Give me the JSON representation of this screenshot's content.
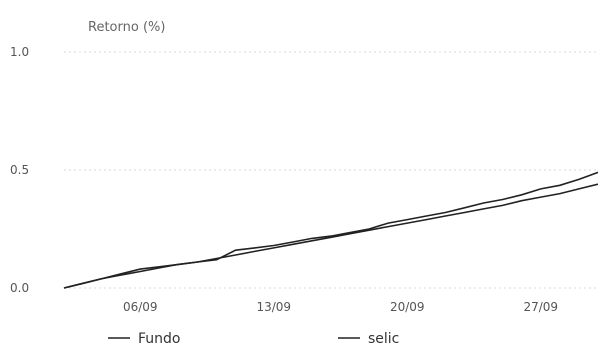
{
  "chart_data": {
    "type": "line",
    "ylabel": "Retorno (%)",
    "ylim": [
      0,
      1.0
    ],
    "yticks": [
      {
        "value": 0.0,
        "label": "0.0"
      },
      {
        "value": 0.5,
        "label": "0.5"
      },
      {
        "value": 1.0,
        "label": "1.0"
      }
    ],
    "xlim": [
      "2013-09-02",
      "2013-09-30"
    ],
    "xticks": [
      {
        "value": "2013-09-06",
        "label": "06/09"
      },
      {
        "value": "2013-09-13",
        "label": "13/09"
      },
      {
        "value": "2013-09-20",
        "label": "20/09"
      },
      {
        "value": "2013-09-27",
        "label": "27/09"
      }
    ],
    "grid": true,
    "legend_position": "bottom",
    "series": [
      {
        "name": "Fundo",
        "color": "#222222",
        "points": [
          [
            "2013-09-02",
            0.0
          ],
          [
            "2013-09-03",
            0.02
          ],
          [
            "2013-09-04",
            0.04
          ],
          [
            "2013-09-05",
            0.06
          ],
          [
            "2013-09-06",
            0.08
          ],
          [
            "2013-09-07",
            0.09
          ],
          [
            "2013-09-08",
            0.1
          ],
          [
            "2013-09-09",
            0.11
          ],
          [
            "2013-09-10",
            0.12
          ],
          [
            "2013-09-11",
            0.16
          ],
          [
            "2013-09-12",
            0.17
          ],
          [
            "2013-09-13",
            0.18
          ],
          [
            "2013-09-14",
            0.195
          ],
          [
            "2013-09-15",
            0.21
          ],
          [
            "2013-09-16",
            0.22
          ],
          [
            "2013-09-17",
            0.235
          ],
          [
            "2013-09-18",
            0.25
          ],
          [
            "2013-09-19",
            0.275
          ],
          [
            "2013-09-20",
            0.29
          ],
          [
            "2013-09-21",
            0.305
          ],
          [
            "2013-09-22",
            0.32
          ],
          [
            "2013-09-23",
            0.34
          ],
          [
            "2013-09-24",
            0.36
          ],
          [
            "2013-09-25",
            0.375
          ],
          [
            "2013-09-26",
            0.395
          ],
          [
            "2013-09-27",
            0.42
          ],
          [
            "2013-09-28",
            0.435
          ],
          [
            "2013-09-29",
            0.46
          ],
          [
            "2013-09-30",
            0.49
          ]
        ]
      },
      {
        "name": "selic",
        "color": "#222222",
        "points": [
          [
            "2013-09-02",
            0.0
          ],
          [
            "2013-09-03",
            0.02
          ],
          [
            "2013-09-04",
            0.04
          ],
          [
            "2013-09-05",
            0.055
          ],
          [
            "2013-09-06",
            0.07
          ],
          [
            "2013-09-07",
            0.085
          ],
          [
            "2013-09-08",
            0.1
          ],
          [
            "2013-09-09",
            0.11
          ],
          [
            "2013-09-10",
            0.125
          ],
          [
            "2013-09-11",
            0.14
          ],
          [
            "2013-09-12",
            0.155
          ],
          [
            "2013-09-13",
            0.17
          ],
          [
            "2013-09-14",
            0.185
          ],
          [
            "2013-09-15",
            0.2
          ],
          [
            "2013-09-16",
            0.215
          ],
          [
            "2013-09-17",
            0.23
          ],
          [
            "2013-09-18",
            0.245
          ],
          [
            "2013-09-19",
            0.26
          ],
          [
            "2013-09-20",
            0.275
          ],
          [
            "2013-09-21",
            0.29
          ],
          [
            "2013-09-22",
            0.305
          ],
          [
            "2013-09-23",
            0.32
          ],
          [
            "2013-09-24",
            0.335
          ],
          [
            "2013-09-25",
            0.35
          ],
          [
            "2013-09-26",
            0.37
          ],
          [
            "2013-09-27",
            0.385
          ],
          [
            "2013-09-28",
            0.4
          ],
          [
            "2013-09-29",
            0.42
          ],
          [
            "2013-09-30",
            0.44
          ]
        ]
      }
    ]
  }
}
